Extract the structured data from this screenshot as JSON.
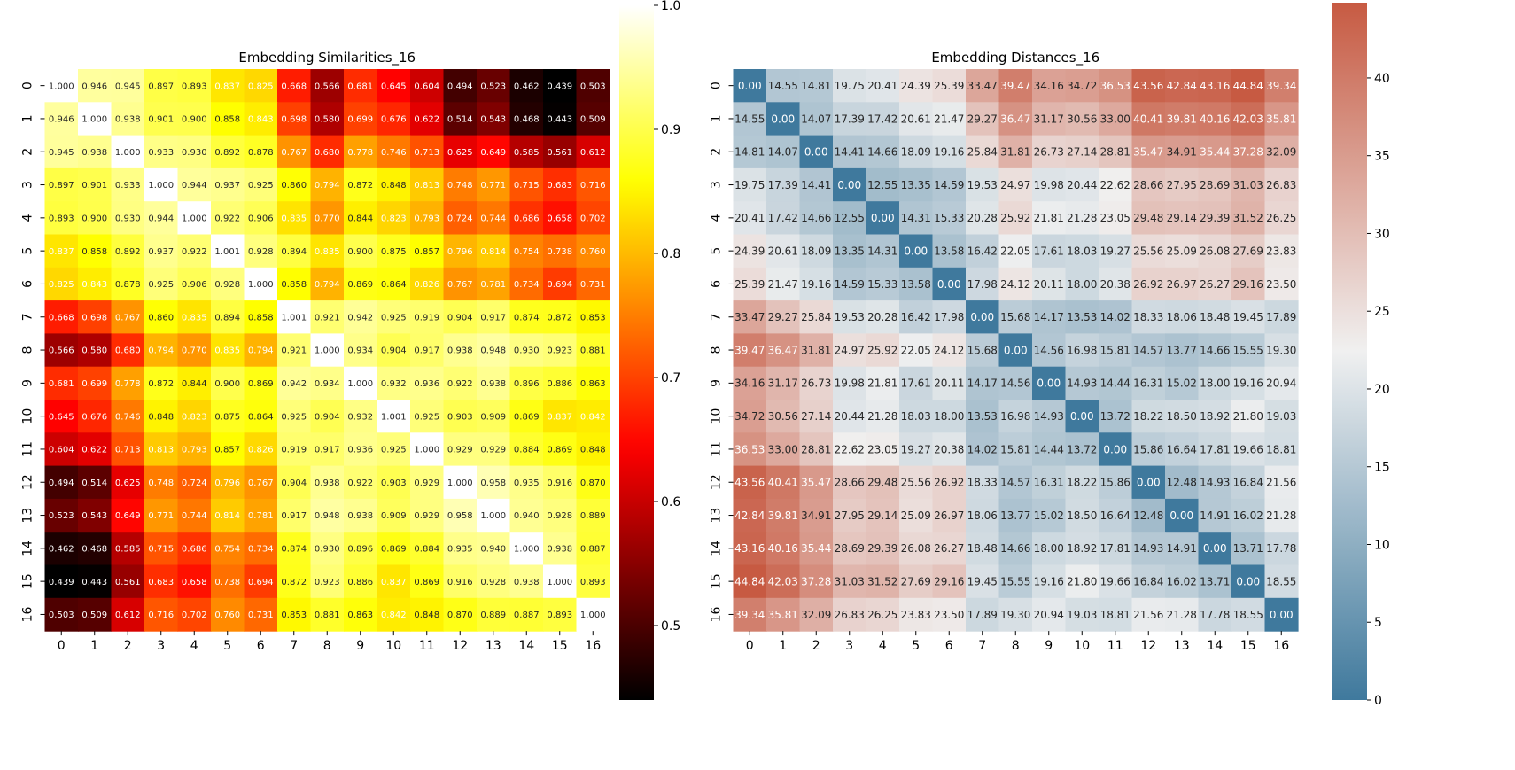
{
  "chart_data": [
    {
      "type": "heatmap",
      "title": "Embedding Similarities_16",
      "xlabel": "",
      "ylabel": "",
      "x_categories": [
        "0",
        "1",
        "2",
        "3",
        "4",
        "5",
        "6",
        "7",
        "8",
        "9",
        "10",
        "11",
        "12",
        "13",
        "14",
        "15",
        "16"
      ],
      "y_categories": [
        "0",
        "1",
        "2",
        "3",
        "4",
        "5",
        "6",
        "7",
        "8",
        "9",
        "10",
        "11",
        "12",
        "13",
        "14",
        "15",
        "16"
      ],
      "colormap": "hot",
      "colorbar": {
        "range": [
          0.44,
          1.0
        ],
        "ticks": [
          "0.5",
          "0.6",
          "0.7",
          "0.8",
          "0.9",
          "1.0"
        ]
      },
      "annotations": true,
      "annotation_format": "{:.3f}",
      "values": [
        [
          1.0,
          0.946,
          0.945,
          0.897,
          0.893,
          0.837,
          0.825,
          0.668,
          0.566,
          0.681,
          0.645,
          0.604,
          0.494,
          0.523,
          0.462,
          0.439,
          0.503
        ],
        [
          0.946,
          1.0,
          0.938,
          0.901,
          0.9,
          0.858,
          0.843,
          0.698,
          0.58,
          0.699,
          0.676,
          0.622,
          0.514,
          0.543,
          0.468,
          0.443,
          0.509
        ],
        [
          0.945,
          0.938,
          1.0,
          0.933,
          0.93,
          0.892,
          0.878,
          0.767,
          0.68,
          0.778,
          0.746,
          0.713,
          0.625,
          0.649,
          0.585,
          0.561,
          0.612
        ],
        [
          0.897,
          0.901,
          0.933,
          1.0,
          0.944,
          0.937,
          0.925,
          0.86,
          0.794,
          0.872,
          0.848,
          0.813,
          0.748,
          0.771,
          0.715,
          0.683,
          0.716
        ],
        [
          0.893,
          0.9,
          0.93,
          0.944,
          1.0,
          0.922,
          0.906,
          0.835,
          0.77,
          0.844,
          0.823,
          0.793,
          0.724,
          0.744,
          0.686,
          0.658,
          0.702
        ],
        [
          0.837,
          0.858,
          0.892,
          0.937,
          0.922,
          1.001,
          0.928,
          0.894,
          0.835,
          0.9,
          0.875,
          0.857,
          0.796,
          0.814,
          0.754,
          0.738,
          0.76
        ],
        [
          0.825,
          0.843,
          0.878,
          0.925,
          0.906,
          0.928,
          1.0,
          0.858,
          0.794,
          0.869,
          0.864,
          0.826,
          0.767,
          0.781,
          0.734,
          0.694,
          0.731
        ],
        [
          0.668,
          0.698,
          0.767,
          0.86,
          0.835,
          0.894,
          0.858,
          1.001,
          0.921,
          0.942,
          0.925,
          0.919,
          0.904,
          0.917,
          0.874,
          0.872,
          0.853
        ],
        [
          0.566,
          0.58,
          0.68,
          0.794,
          0.77,
          0.835,
          0.794,
          0.921,
          1.0,
          0.934,
          0.904,
          0.917,
          0.938,
          0.948,
          0.93,
          0.923,
          0.881
        ],
        [
          0.681,
          0.699,
          0.778,
          0.872,
          0.844,
          0.9,
          0.869,
          0.942,
          0.934,
          1.0,
          0.932,
          0.936,
          0.922,
          0.938,
          0.896,
          0.886,
          0.863
        ],
        [
          0.645,
          0.676,
          0.746,
          0.848,
          0.823,
          0.875,
          0.864,
          0.925,
          0.904,
          0.932,
          1.001,
          0.925,
          0.903,
          0.909,
          0.869,
          0.837,
          0.842
        ],
        [
          0.604,
          0.622,
          0.713,
          0.813,
          0.793,
          0.857,
          0.826,
          0.919,
          0.917,
          0.936,
          0.925,
          1.0,
          0.929,
          0.929,
          0.884,
          0.869,
          0.848
        ],
        [
          0.494,
          0.514,
          0.625,
          0.748,
          0.724,
          0.796,
          0.767,
          0.904,
          0.938,
          0.922,
          0.903,
          0.929,
          1.0,
          0.958,
          0.935,
          0.916,
          0.87
        ],
        [
          0.523,
          0.543,
          0.649,
          0.771,
          0.744,
          0.814,
          0.781,
          0.917,
          0.948,
          0.938,
          0.909,
          0.929,
          0.958,
          1.0,
          0.94,
          0.928,
          0.889
        ],
        [
          0.462,
          0.468,
          0.585,
          0.715,
          0.686,
          0.754,
          0.734,
          0.874,
          0.93,
          0.896,
          0.869,
          0.884,
          0.935,
          0.94,
          1.0,
          0.938,
          0.887
        ],
        [
          0.439,
          0.443,
          0.561,
          0.683,
          0.658,
          0.738,
          0.694,
          0.872,
          0.923,
          0.886,
          0.837,
          0.869,
          0.916,
          0.928,
          0.938,
          1.0,
          0.893
        ],
        [
          0.503,
          0.509,
          0.612,
          0.716,
          0.702,
          0.76,
          0.731,
          0.853,
          0.881,
          0.863,
          0.842,
          0.848,
          0.87,
          0.889,
          0.887,
          0.893,
          1.0
        ]
      ]
    },
    {
      "type": "heatmap",
      "title": "Embedding Distances_16",
      "xlabel": "",
      "ylabel": "",
      "x_categories": [
        "0",
        "1",
        "2",
        "3",
        "4",
        "5",
        "6",
        "7",
        "8",
        "9",
        "10",
        "11",
        "12",
        "13",
        "14",
        "15",
        "16"
      ],
      "y_categories": [
        "0",
        "1",
        "2",
        "3",
        "4",
        "5",
        "6",
        "7",
        "8",
        "9",
        "10",
        "11",
        "12",
        "13",
        "14",
        "15",
        "16"
      ],
      "colormap": "diverging blue-white-red",
      "colorbar": {
        "range": [
          0,
          44.84
        ],
        "ticks": [
          "0",
          "5",
          "10",
          "15",
          "20",
          "25",
          "30",
          "35",
          "40"
        ]
      },
      "annotations": true,
      "annotation_format": "{:.2f}",
      "values": [
        [
          0.0,
          14.55,
          14.81,
          19.75,
          20.41,
          24.39,
          25.39,
          33.47,
          39.47,
          34.16,
          34.72,
          36.53,
          43.56,
          42.84,
          43.16,
          44.84,
          39.34
        ],
        [
          14.55,
          0.0,
          14.07,
          17.39,
          17.42,
          20.61,
          21.47,
          29.27,
          36.47,
          31.17,
          30.56,
          33.0,
          40.41,
          39.81,
          40.16,
          42.03,
          35.81
        ],
        [
          14.81,
          14.07,
          0.0,
          14.41,
          14.66,
          18.09,
          19.16,
          25.84,
          31.81,
          26.73,
          27.14,
          28.81,
          35.47,
          34.91,
          35.44,
          37.28,
          32.09
        ],
        [
          19.75,
          17.39,
          14.41,
          0.0,
          12.55,
          13.35,
          14.59,
          19.53,
          24.97,
          19.98,
          20.44,
          22.62,
          28.66,
          27.95,
          28.69,
          31.03,
          26.83
        ],
        [
          20.41,
          17.42,
          14.66,
          12.55,
          0.0,
          14.31,
          15.33,
          20.28,
          25.92,
          21.81,
          21.28,
          23.05,
          29.48,
          29.14,
          29.39,
          31.52,
          26.25
        ],
        [
          24.39,
          20.61,
          18.09,
          13.35,
          14.31,
          0.0,
          13.58,
          16.42,
          22.05,
          17.61,
          18.03,
          19.27,
          25.56,
          25.09,
          26.08,
          27.69,
          23.83
        ],
        [
          25.39,
          21.47,
          19.16,
          14.59,
          15.33,
          13.58,
          0.0,
          17.98,
          24.12,
          20.11,
          18.0,
          20.38,
          26.92,
          26.97,
          26.27,
          29.16,
          23.5
        ],
        [
          33.47,
          29.27,
          25.84,
          19.53,
          20.28,
          16.42,
          17.98,
          0.0,
          15.68,
          14.17,
          13.53,
          14.02,
          18.33,
          18.06,
          18.48,
          19.45,
          17.89
        ],
        [
          39.47,
          36.47,
          31.81,
          24.97,
          25.92,
          22.05,
          24.12,
          15.68,
          0.0,
          14.56,
          16.98,
          15.81,
          14.57,
          13.77,
          14.66,
          15.55,
          19.3
        ],
        [
          34.16,
          31.17,
          26.73,
          19.98,
          21.81,
          17.61,
          20.11,
          14.17,
          14.56,
          0.0,
          14.93,
          14.44,
          16.31,
          15.02,
          18.0,
          19.16,
          20.94
        ],
        [
          34.72,
          30.56,
          27.14,
          20.44,
          21.28,
          18.03,
          18.0,
          13.53,
          16.98,
          14.93,
          0.0,
          13.72,
          18.22,
          18.5,
          18.92,
          21.8,
          19.03
        ],
        [
          36.53,
          33.0,
          28.81,
          22.62,
          23.05,
          19.27,
          20.38,
          14.02,
          15.81,
          14.44,
          13.72,
          0.0,
          15.86,
          16.64,
          17.81,
          19.66,
          18.81
        ],
        [
          43.56,
          40.41,
          35.47,
          28.66,
          29.48,
          25.56,
          26.92,
          18.33,
          14.57,
          16.31,
          18.22,
          15.86,
          0.0,
          12.48,
          14.93,
          16.84,
          21.56
        ],
        [
          42.84,
          39.81,
          34.91,
          27.95,
          29.14,
          25.09,
          26.97,
          18.06,
          13.77,
          15.02,
          18.5,
          16.64,
          12.48,
          0.0,
          14.91,
          16.02,
          21.28
        ],
        [
          43.16,
          40.16,
          35.44,
          28.69,
          29.39,
          26.08,
          26.27,
          18.48,
          14.66,
          18.0,
          18.92,
          17.81,
          14.93,
          14.91,
          0.0,
          13.71,
          17.78
        ],
        [
          44.84,
          42.03,
          37.28,
          31.03,
          31.52,
          27.69,
          29.16,
          19.45,
          15.55,
          19.16,
          21.8,
          19.66,
          16.84,
          16.02,
          13.71,
          0.0,
          18.55
        ],
        [
          39.34,
          35.81,
          32.09,
          26.83,
          26.25,
          23.83,
          23.5,
          17.89,
          19.3,
          20.94,
          19.03,
          18.81,
          21.56,
          21.28,
          17.78,
          18.55,
          0.0
        ]
      ]
    }
  ]
}
